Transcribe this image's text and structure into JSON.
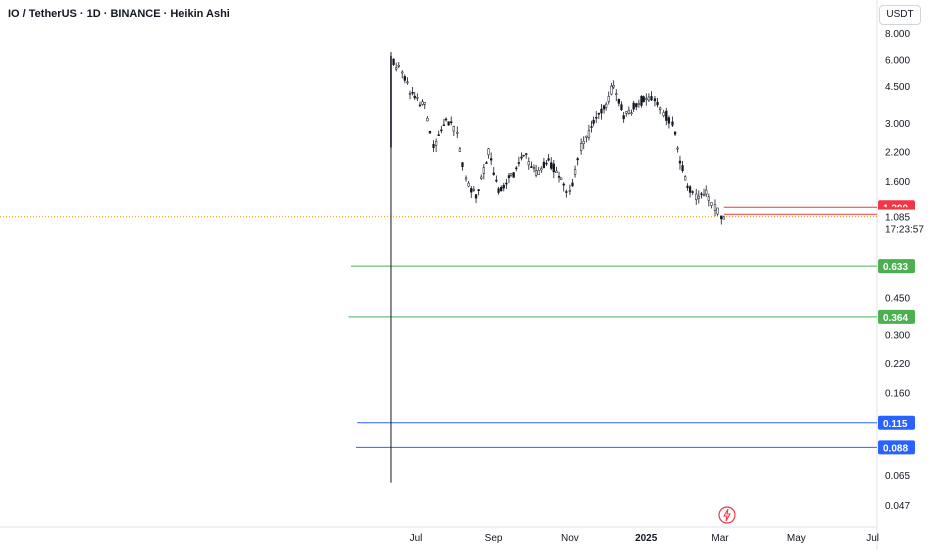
{
  "header": {
    "title": "IO / TetherUS · 1D · BINANCE · Heikin Ashi",
    "currency": "USDT"
  },
  "icons": {
    "flash": "lightning-bolt-icon"
  },
  "colors": {
    "candle": "#131722",
    "red_line": "#f23645",
    "green_line": "#4caf50",
    "blue_line": "#2962ff",
    "current_price_line": "#ff9800",
    "axis_text": "#131722",
    "axis_border": "#e0e3eb"
  },
  "chart_data": {
    "type": "candlestick",
    "scale": "log",
    "ylim": [
      0.04,
      9.5
    ],
    "y_ticks": [
      8.0,
      6.0,
      4.5,
      3.0,
      2.2,
      1.6,
      0.45,
      0.3,
      0.22,
      0.16,
      0.065,
      0.047
    ],
    "x_ticks": [
      "Jul",
      "Sep",
      "Nov",
      "2025",
      "Mar",
      "May",
      "Jul"
    ],
    "x_tick_dates": [
      "2024-07-01",
      "2024-09-01",
      "2024-11-01",
      "2025-01-01",
      "2025-03-01",
      "2025-05-01",
      "2025-07-01"
    ],
    "series": [
      {
        "values": [
          {
            "date": "2024-06-11",
            "high": 6.5,
            "low": 0.06,
            "price": 6.0
          },
          {
            "date": "2024-06-20",
            "price": 5.2
          },
          {
            "date": "2024-06-30",
            "price": 3.9
          },
          {
            "date": "2024-07-08",
            "price": 3.6
          },
          {
            "date": "2024-07-15",
            "price": 2.3
          },
          {
            "date": "2024-07-25",
            "price": 3.1
          },
          {
            "date": "2024-08-03",
            "price": 2.7
          },
          {
            "date": "2024-08-10",
            "price": 1.6
          },
          {
            "date": "2024-08-18",
            "price": 1.35
          },
          {
            "date": "2024-08-28",
            "price": 2.2
          },
          {
            "date": "2024-09-05",
            "price": 1.4
          },
          {
            "date": "2024-09-15",
            "price": 1.7
          },
          {
            "date": "2024-09-25",
            "price": 2.1
          },
          {
            "date": "2024-10-05",
            "price": 1.75
          },
          {
            "date": "2024-10-15",
            "price": 2.0
          },
          {
            "date": "2024-10-25",
            "price": 1.65
          },
          {
            "date": "2024-11-01",
            "price": 1.4
          },
          {
            "date": "2024-11-10",
            "price": 2.3
          },
          {
            "date": "2024-11-20",
            "price": 3.0
          },
          {
            "date": "2024-11-30",
            "price": 3.7
          },
          {
            "date": "2024-12-06",
            "price": 4.6
          },
          {
            "date": "2024-12-14",
            "price": 3.2
          },
          {
            "date": "2024-12-22",
            "price": 3.6
          },
          {
            "date": "2024-12-30",
            "price": 3.9
          },
          {
            "date": "2025-01-08",
            "price": 3.8
          },
          {
            "date": "2025-01-15",
            "price": 3.4
          },
          {
            "date": "2025-01-22",
            "price": 3.0
          },
          {
            "date": "2025-01-28",
            "price": 2.0
          },
          {
            "date": "2025-02-03",
            "price": 1.5
          },
          {
            "date": "2025-02-10",
            "price": 1.35
          },
          {
            "date": "2025-02-18",
            "price": 1.4
          },
          {
            "date": "2025-02-25",
            "price": 1.2
          },
          {
            "date": "2025-03-02",
            "price": 1.09
          },
          {
            "date": "2025-03-06",
            "price": 1.085
          }
        ]
      }
    ],
    "horizontal_lines": [
      {
        "price": 1.2,
        "label": "1.200",
        "color": "red",
        "from_date": "2025-03-04"
      },
      {
        "price": 1.112,
        "label": "1.112",
        "color": "red",
        "from_date": "2025-03-04"
      },
      {
        "price": 0.633,
        "label": "0.633",
        "color": "green",
        "from_date": "2024-05-10"
      },
      {
        "price": 0.364,
        "label": "0.364",
        "color": "green",
        "from_date": "2024-05-08"
      },
      {
        "price": 0.115,
        "label": "0.115",
        "color": "blue",
        "from_date": "2024-05-15"
      },
      {
        "price": 0.088,
        "label": "0.088",
        "color": "blue",
        "from_date": "2024-05-14"
      }
    ],
    "current_price": {
      "value": 1.085,
      "label": "1.085",
      "countdown": "17:23:57"
    }
  }
}
